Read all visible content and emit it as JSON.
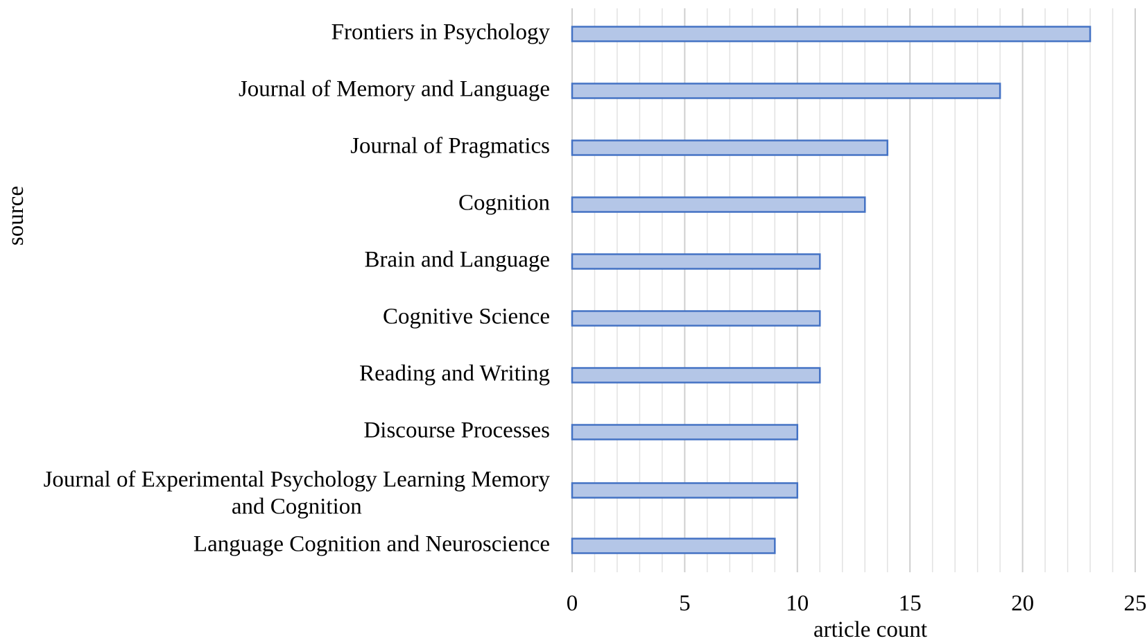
{
  "chart_data": {
    "type": "bar",
    "orientation": "horizontal",
    "categories": [
      "Frontiers in Psychology",
      "Journal of Memory and Language",
      "Journal of Pragmatics",
      "Cognition",
      "Brain and Language",
      "Cognitive Science",
      "Reading and Writing",
      "Discourse Processes",
      "Journal of Experimental Psychology Learning Memory and Cognition",
      "Language Cognition and Neuroscience"
    ],
    "category_label_lines": [
      [
        "Frontiers in Psychology"
      ],
      [
        "Journal of Memory and Language"
      ],
      [
        "Journal of Pragmatics"
      ],
      [
        "Cognition"
      ],
      [
        "Brain and Language"
      ],
      [
        "Cognitive Science"
      ],
      [
        "Reading and Writing"
      ],
      [
        "Discourse Processes"
      ],
      [
        "Journal of Experimental Psychology Learning Memory",
        "and Cognition"
      ],
      [
        "Language Cognition and Neuroscience"
      ]
    ],
    "values": [
      23,
      19,
      14,
      13,
      11,
      11,
      11,
      10,
      10,
      9
    ],
    "xlabel": "article count",
    "ylabel": "source",
    "xlim": [
      0,
      25
    ],
    "xticks": [
      0,
      5,
      10,
      15,
      20,
      25
    ],
    "minor_tick_step": 1,
    "grid": true,
    "bar_fill": "#b4c6e7",
    "bar_stroke": "#4472c4"
  }
}
